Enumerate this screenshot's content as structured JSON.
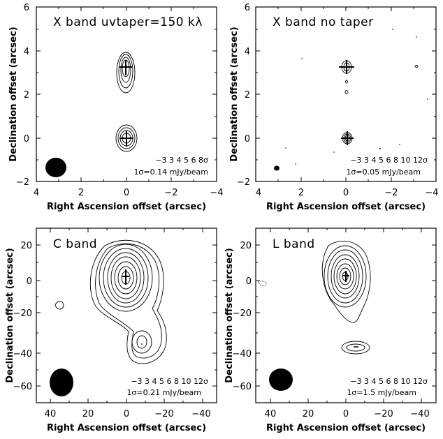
{
  "figure": {
    "panels": [
      {
        "id": "x-taper",
        "title": "X band uvtaper=150 kλ",
        "contour_levels": "−3 3 4 5 6 8σ",
        "rms": "1σ=0.14 mJy/beam",
        "xlabel": "Right Ascension offset (arcsec)",
        "ylabel": "Declination offset (arcsec)",
        "x_ticks": [
          "4",
          "2",
          "0",
          "−2",
          "−4"
        ],
        "y_ticks": [
          "−2",
          "0",
          "2",
          "4",
          "6"
        ]
      },
      {
        "id": "x-notaper",
        "title": "X band no taper",
        "contour_levels": "−3 3 4 5 6 8 10 12σ",
        "rms": "1σ=0.05 mJy/beam",
        "xlabel": "Right Ascension offset (arcsec)",
        "ylabel": "Declination offset (arcsec)",
        "x_ticks": [
          "4",
          "2",
          "0",
          "−2",
          "−4"
        ],
        "y_ticks": [
          "−2",
          "0",
          "2",
          "4",
          "6"
        ]
      },
      {
        "id": "c-band",
        "title": "C band",
        "contour_levels": "−3 3 4 5 6 8 10 12σ",
        "rms": "1σ=0.21 mJy/beam",
        "xlabel": "Right Ascension offset (arcsec)",
        "ylabel": "Declination offset (arcsec)",
        "x_ticks": [
          "40",
          "20",
          "0",
          "−20",
          "−40"
        ],
        "y_ticks": [
          "−60",
          "−40",
          "−20",
          "0",
          "20"
        ]
      },
      {
        "id": "l-band",
        "title": "L band",
        "contour_levels": "−3 3 4 5 6 8 10 12σ",
        "rms": "1σ=1.5 mJy/beam",
        "xlabel": "Right Ascension offset (arcsec)",
        "ylabel": "Declination offset (arcsec)",
        "x_ticks": [
          "40",
          "20",
          "0",
          "−20",
          "−40"
        ],
        "y_ticks": [
          "−60",
          "−40",
          "−20",
          "0",
          "20"
        ]
      }
    ]
  }
}
